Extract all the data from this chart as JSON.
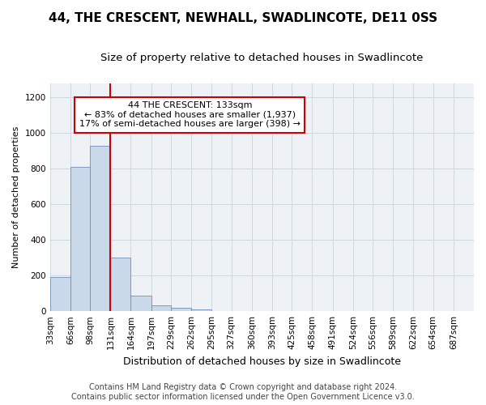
{
  "title": "44, THE CRESCENT, NEWHALL, SWADLINCOTE, DE11 0SS",
  "subtitle": "Size of property relative to detached houses in Swadlincote",
  "xlabel": "Distribution of detached houses by size in Swadlincote",
  "ylabel": "Number of detached properties",
  "bar_edges": [
    33,
    66,
    98,
    131,
    164,
    197,
    229,
    262,
    295,
    327,
    360,
    393,
    425,
    458,
    491,
    524,
    556,
    589,
    622,
    654,
    687
  ],
  "bar_heights": [
    190,
    810,
    930,
    300,
    85,
    33,
    17,
    10,
    0,
    0,
    0,
    0,
    0,
    0,
    0,
    0,
    0,
    0,
    0,
    0
  ],
  "bar_color": "#c9d9ea",
  "bar_edge_color": "#7090b8",
  "grid_color": "#d0d8e0",
  "bg_color": "#eef2f7",
  "property_line_x": 131,
  "property_line_color": "#cc0000",
  "annotation_line1": "44 THE CRESCENT: 133sqm",
  "annotation_line2": "← 83% of detached houses are smaller (1,937)",
  "annotation_line3": "17% of semi-detached houses are larger (398) →",
  "annotation_box_color": "#ffffff",
  "annotation_box_edge_color": "#cc0000",
  "footer_text": "Contains HM Land Registry data © Crown copyright and database right 2024.\nContains public sector information licensed under the Open Government Licence v3.0.",
  "ylim": [
    0,
    1280
  ],
  "yticks": [
    0,
    200,
    400,
    600,
    800,
    1000,
    1200
  ],
  "title_fontsize": 11,
  "subtitle_fontsize": 9.5,
  "xlabel_fontsize": 9,
  "ylabel_fontsize": 8,
  "tick_fontsize": 7.5,
  "footer_fontsize": 7,
  "annotation_fontsize": 8
}
